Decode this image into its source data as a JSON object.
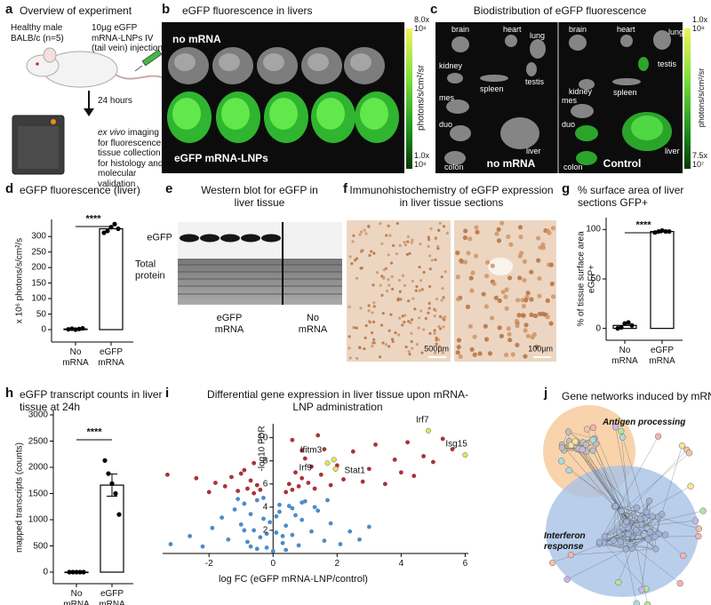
{
  "panel_a": {
    "label": "a",
    "title": "Overview of experiment",
    "mouse": "Healthy male BALB/c (n=5)",
    "injection": "10µg eGFP mRNA-LNPs IV (tail vein) injection",
    "interval": "24 hours",
    "imaging_emphasis": "ex vivo",
    "imaging": "imaging for fluorescence; tissue collection for histology and molecular validation"
  },
  "panel_b": {
    "label": "b",
    "title": "eGFP fluorescence in livers",
    "top_group": "no mRNA",
    "bottom_group": "eGFP mRNA-LNPs",
    "colorbar_label": "photons/s/cm²/sr",
    "colorbar_max": "8.0x 10⁸",
    "colorbar_min": "1.0x 10⁸"
  },
  "panel_c": {
    "label": "c",
    "title": "Biodistribution of eGFP fluorescence",
    "left_group": "no mRNA",
    "right_group": "Control",
    "left_organs": [
      "brain",
      "heart",
      "lung",
      "kidney",
      "testis",
      "spleen",
      "mes",
      "duo",
      "liver",
      "colon"
    ],
    "right_organs": [
      "brain",
      "heart",
      "lung",
      "testis",
      "kidney",
      "spleen",
      "mes",
      "duo",
      "liver",
      "colon"
    ],
    "colorbar_label": "photons/s/cm²/sr",
    "colorbar_max": "1.0x 10⁹",
    "colorbar_min": "7.5x 10⁷"
  },
  "panel_d": {
    "label": "d",
    "chart_data": {
      "type": "bar",
      "title": "eGFP fluorescence (liver)",
      "y_label": "x 10⁶ photons/s/cm²/s",
      "categories": [
        "No mRNA",
        "eGFP mRNA"
      ],
      "values": [
        2,
        325
      ],
      "points": [
        [
          1,
          3,
          0,
          2,
          4
        ],
        [
          312,
          318,
          330,
          340,
          325
        ]
      ],
      "color": "#ffffff",
      "ylim": [
        -40,
        355
      ],
      "yticks": [
        0,
        50,
        100,
        150,
        200,
        250,
        300
      ],
      "significance": "****"
    }
  },
  "panel_e": {
    "label": "e",
    "title": "Western blot for eGFP in liver tissue",
    "band_label": "eGFP",
    "loading_label": "Total protein",
    "left_group": "eGFP mRNA",
    "right_group": "No mRNA"
  },
  "panel_f": {
    "label": "f",
    "title": "Immunohistochemistry of eGFP expression in liver tissue sections",
    "left_scale": "500µm",
    "right_scale": "100µm"
  },
  "panel_g": {
    "label": "g",
    "chart_data": {
      "type": "bar",
      "title": "% surface area of liver sections GFP+",
      "y_label": "% of tissue surface area eGFP+",
      "categories": [
        "No mRNA",
        "eGFP mRNA"
      ],
      "values": [
        3,
        98
      ],
      "points": [
        [
          0,
          1,
          5,
          6,
          3
        ],
        [
          97,
          98,
          99,
          98,
          98
        ]
      ],
      "color": "#ffffff",
      "ylim": [
        -12,
        112
      ],
      "yticks": [
        0,
        50,
        100
      ],
      "significance": "****"
    }
  },
  "panel_h": {
    "label": "h",
    "chart_data": {
      "type": "bar",
      "title": "eGFP transcript counts in liver tissue at 24h",
      "y_label": "mapped transcripts (counts)",
      "categories": [
        "No mRNA",
        "eGFP mRNA"
      ],
      "values": [
        0,
        1660
      ],
      "errors": [
        0,
        210
      ],
      "points": [
        [
          0,
          0,
          0,
          0,
          0
        ],
        [
          2130,
          1880,
          1690,
          1500,
          1100
        ]
      ],
      "color": "#ffffff",
      "ylim": [
        -220,
        3085
      ],
      "yticks": [
        0,
        500,
        1000,
        1500,
        2000,
        2500,
        3000
      ],
      "significance": "****"
    }
  },
  "panel_i": {
    "label": "i",
    "chart_data": {
      "type": "scatter",
      "title": "Differential gene expression in liver tissue upon mRNA-LNP administration",
      "x_label": "log FC (eGFP mRNA-LNP/control)",
      "y_label": "-log10 FDR",
      "xlim": [
        -3.45,
        6.1
      ],
      "xticks": [
        -2,
        0,
        2,
        4,
        6
      ],
      "ylim": [
        0,
        11.2
      ],
      "yticks": [
        2,
        4,
        6,
        8,
        10
      ],
      "series": [
        {
          "color": "#a8323a",
          "x": [
            -3.3,
            -2.4,
            -2.0,
            -1.8,
            -1.5,
            -1.3,
            -1.1,
            -0.9,
            -0.8,
            -0.7,
            -0.6,
            -0.5,
            -0.4,
            -1.0,
            -0.6,
            0.4,
            0.5,
            0.6,
            0.7,
            0.8,
            0.9,
            1.0,
            1.1,
            1.2,
            1.3,
            1.5,
            1.6,
            1.8,
            2.0,
            2.2,
            2.5,
            2.8,
            3.0,
            3.2,
            3.5,
            3.8,
            4.0,
            4.2,
            4.4,
            4.7,
            5.0,
            5.3,
            5.6,
            0.6,
            0.9,
            1.4
          ],
          "y": [
            6.8,
            6.5,
            5.3,
            6.1,
            5.8,
            6.6,
            5.4,
            7.2,
            5.6,
            6.3,
            5.2,
            5.9,
            5.5,
            6.9,
            7.8,
            5.3,
            6.0,
            5.5,
            7.0,
            5.8,
            6.5,
            8.2,
            6.1,
            7.5,
            5.6,
            6.8,
            9.0,
            5.9,
            7.6,
            6.4,
            8.8,
            6.2,
            7.3,
            9.4,
            6.0,
            8.1,
            7.0,
            9.6,
            6.7,
            8.4,
            7.9,
            9.9,
            9.0,
            9.8,
            8.9,
            10.2
          ]
        },
        {
          "color": "#4c8cc8",
          "x": [
            -3.2,
            -2.6,
            -2.2,
            -1.9,
            -1.6,
            -1.4,
            -1.2,
            -1.0,
            -0.9,
            -0.8,
            -0.7,
            -0.6,
            -0.5,
            -0.4,
            -0.3,
            -0.2,
            -0.1,
            0.0,
            0.1,
            0.2,
            0.3,
            0.4,
            0.5,
            0.6,
            0.7,
            0.8,
            0.9,
            1.0,
            1.2,
            1.4,
            1.6,
            1.8,
            2.1,
            2.4,
            2.7,
            3.0,
            -0.5,
            -0.3,
            0.2,
            0.4,
            -1.1,
            -0.7,
            0.6,
            0.9,
            1.3,
            -0.2,
            0.1,
            -0.9,
            0.3,
            1.7
          ],
          "y": [
            0.8,
            1.5,
            0.6,
            2.2,
            3.1,
            1.2,
            3.8,
            2.5,
            4.3,
            1.0,
            3.4,
            2.0,
            4.6,
            1.4,
            3.0,
            0.5,
            2.7,
            0.2,
            1.8,
            3.6,
            0.9,
            2.4,
            4.1,
            1.6,
            3.3,
            0.7,
            2.9,
            4.5,
            1.9,
            3.7,
            1.1,
            2.6,
            0.8,
            1.9,
            1.2,
            2.3,
            0.4,
            4.8,
            4.2,
            0.3,
            4.7,
            0.6,
            3.9,
            4.4,
            4.0,
            1.7,
            3.2,
            2.0,
            1.5,
            4.6
          ]
        }
      ],
      "gene_color": "#dfe65a",
      "genes": [
        {
          "label": "Irf7",
          "x": 4.85,
          "y": 10.6
        },
        {
          "label": "Isg15",
          "x": 6.0,
          "y": 8.5
        },
        {
          "label": "Ifitm3",
          "x": 1.9,
          "y": 8.1
        },
        {
          "label": "Irf9",
          "x": 1.7,
          "y": 7.8
        },
        {
          "label": "Stat1",
          "x": 1.95,
          "y": 7.3
        }
      ]
    }
  },
  "panel_j": {
    "label": "j",
    "title": "Gene networks induced by mRNA-LNP",
    "upper_cluster": "Antigen processing",
    "lower_cluster": "Interferon response"
  }
}
